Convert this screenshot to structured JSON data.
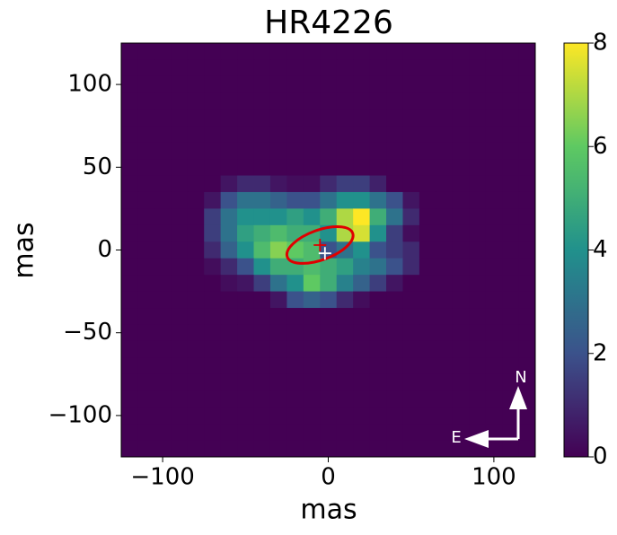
{
  "chart_data": {
    "type": "heatmap",
    "title": "HR4226",
    "xlabel": "mas",
    "ylabel": "mas",
    "xlim": [
      -125,
      125
    ],
    "ylim": [
      -125,
      125
    ],
    "xticks": [
      {
        "value": -100,
        "label": "−100"
      },
      0,
      100
    ],
    "yticks": [
      {
        "value": -100,
        "label": "−100"
      },
      {
        "value": -50,
        "label": "−50"
      },
      0,
      50,
      100
    ],
    "clim": [
      0,
      8
    ],
    "cticks": [
      0,
      2,
      4,
      6,
      8
    ],
    "colormap": "viridis",
    "z": [
      [
        0,
        0,
        0,
        0,
        0,
        0,
        0,
        0,
        0,
        0,
        0,
        0,
        0,
        0,
        0,
        0,
        0,
        0,
        0,
        0,
        0,
        0,
        0,
        0,
        0
      ],
      [
        0,
        0,
        0,
        0,
        0,
        0,
        0,
        0,
        0,
        0,
        0,
        0,
        0,
        0,
        0,
        0,
        0,
        0,
        0,
        0,
        0,
        0,
        0,
        0,
        0
      ],
      [
        0,
        0,
        0,
        0,
        0,
        0,
        0,
        0,
        0,
        0,
        0,
        0,
        0,
        0,
        0,
        0,
        0,
        0,
        0,
        0,
        0,
        0,
        0,
        0,
        0
      ],
      [
        0,
        0,
        0,
        0,
        0,
        0,
        0,
        0,
        0,
        0,
        0,
        0,
        0,
        0,
        0,
        0,
        0,
        0,
        0,
        0,
        0,
        0,
        0,
        0,
        0
      ],
      [
        0,
        0,
        0,
        0,
        0,
        0,
        0,
        0,
        0,
        0,
        0,
        0,
        0,
        0,
        0,
        0,
        0,
        0,
        0,
        0,
        0,
        0,
        0,
        0,
        0
      ],
      [
        0,
        0,
        0,
        0,
        0,
        0,
        0,
        0,
        0,
        0,
        0,
        0,
        0,
        0,
        0,
        0,
        0,
        0,
        0,
        0,
        0,
        0,
        0,
        0,
        0
      ],
      [
        0,
        0,
        0,
        0,
        0,
        0,
        0,
        0,
        0,
        0,
        0,
        0,
        0,
        0,
        0,
        0,
        0,
        0,
        0,
        0,
        0,
        0,
        0,
        0,
        0
      ],
      [
        0,
        0,
        0,
        0,
        0,
        0,
        0,
        0,
        0,
        0,
        0,
        0,
        0,
        0,
        0,
        0,
        0,
        0,
        0,
        0,
        0,
        0,
        0,
        0,
        0
      ],
      [
        0,
        0,
        0,
        0,
        0,
        0,
        0.5,
        1,
        1,
        0.5,
        0.3,
        0.3,
        1,
        1.5,
        1.5,
        0.8,
        0,
        0,
        0,
        0,
        0,
        0,
        0,
        0,
        0
      ],
      [
        0,
        0,
        0,
        0,
        0,
        0.5,
        2,
        3,
        3,
        2.5,
        2,
        2,
        3,
        4,
        4,
        3,
        2,
        0.5,
        0,
        0,
        0,
        0,
        0,
        0,
        0
      ],
      [
        0,
        0,
        0,
        0,
        0,
        1.5,
        3,
        4,
        4,
        4,
        4.5,
        4,
        5,
        7,
        8,
        5,
        3,
        1,
        0,
        0,
        0,
        0,
        0,
        0,
        0
      ],
      [
        0,
        0,
        0,
        0,
        0,
        1.5,
        3,
        4.5,
        5,
        5.5,
        5,
        5,
        4,
        7,
        7.5,
        4,
        1.5,
        0.3,
        0,
        0,
        0,
        0,
        0,
        0,
        0
      ],
      [
        0,
        0,
        0,
        0,
        0,
        1,
        2.5,
        4,
        5.5,
        6.5,
        6,
        5.5,
        2,
        3,
        4,
        2,
        1.5,
        1,
        0,
        0,
        0,
        0,
        0,
        0,
        0
      ],
      [
        0,
        0,
        0,
        0,
        0,
        0.3,
        1,
        2,
        4,
        5,
        5,
        5.5,
        5,
        4.5,
        3.5,
        3,
        2,
        1,
        0,
        0,
        0,
        0,
        0,
        0,
        0
      ],
      [
        0,
        0,
        0,
        0,
        0,
        0,
        0.3,
        0.5,
        1.5,
        3,
        4,
        6,
        5,
        3.5,
        2.5,
        1.5,
        0.5,
        0,
        0,
        0,
        0,
        0,
        0,
        0,
        0
      ],
      [
        0,
        0,
        0,
        0,
        0,
        0,
        0,
        0,
        0,
        0.5,
        2,
        2.5,
        2,
        1,
        0.3,
        0,
        0,
        0,
        0,
        0,
        0,
        0,
        0,
        0,
        0
      ],
      [
        0,
        0,
        0,
        0,
        0,
        0,
        0,
        0,
        0,
        0,
        0,
        0,
        0,
        0,
        0,
        0,
        0,
        0,
        0,
        0,
        0,
        0,
        0,
        0,
        0
      ],
      [
        0,
        0,
        0,
        0,
        0,
        0,
        0,
        0,
        0,
        0,
        0,
        0,
        0,
        0,
        0,
        0,
        0,
        0,
        0,
        0,
        0,
        0,
        0,
        0,
        0
      ],
      [
        0,
        0,
        0,
        0,
        0,
        0,
        0,
        0,
        0,
        0,
        0,
        0,
        0,
        0,
        0,
        0,
        0,
        0,
        0,
        0,
        0,
        0,
        0,
        0,
        0
      ],
      [
        0,
        0,
        0,
        0,
        0,
        0,
        0,
        0,
        0,
        0,
        0,
        0,
        0,
        0,
        0,
        0,
        0,
        0,
        0,
        0,
        0,
        0,
        0,
        0,
        0
      ],
      [
        0,
        0,
        0,
        0,
        0,
        0,
        0,
        0,
        0,
        0,
        0,
        0,
        0,
        0,
        0,
        0,
        0,
        0,
        0,
        0,
        0,
        0,
        0,
        0,
        0
      ],
      [
        0,
        0,
        0,
        0,
        0,
        0,
        0,
        0,
        0,
        0,
        0,
        0,
        0,
        0,
        0,
        0,
        0,
        0,
        0,
        0,
        0,
        0,
        0,
        0,
        0
      ],
      [
        0,
        0,
        0,
        0,
        0,
        0,
        0,
        0,
        0,
        0,
        0,
        0,
        0,
        0,
        0,
        0,
        0,
        0,
        0,
        0,
        0,
        0,
        0,
        0,
        0
      ],
      [
        0,
        0,
        0,
        0,
        0,
        0,
        0,
        0,
        0,
        0,
        0,
        0,
        0,
        0,
        0,
        0,
        0,
        0,
        0,
        0,
        0,
        0,
        0,
        0,
        0
      ],
      [
        0,
        0,
        0,
        0,
        0,
        0,
        0,
        0,
        0,
        0,
        0,
        0,
        0,
        0,
        0,
        0,
        0,
        0,
        0,
        0,
        0,
        0,
        0,
        0,
        0
      ]
    ],
    "ellipse": {
      "center": [
        -5,
        3
      ],
      "width": 42,
      "height": 18,
      "angle": 20,
      "color": "#e00000"
    },
    "markers": [
      {
        "x": -5,
        "y": 3,
        "color": "#e00000"
      },
      {
        "x": -2,
        "y": -2,
        "color": "#ffffff"
      }
    ],
    "compass": {
      "north": "N",
      "east": "E"
    }
  }
}
